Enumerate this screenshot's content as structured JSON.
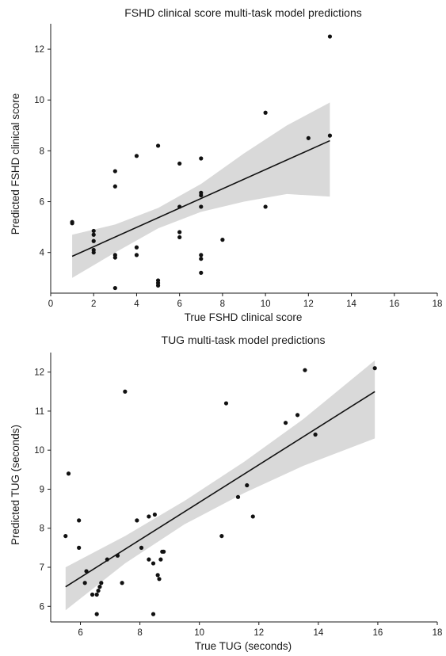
{
  "chart_data": [
    {
      "type": "scatter",
      "title": "FSHD clinical score multi-task model predictions",
      "xlabel": "True FSHD clinical score",
      "ylabel": "Predicted FSHD clinical score",
      "xlim": [
        0,
        18
      ],
      "ylim": [
        2.4,
        13
      ],
      "xticks": [
        0,
        2,
        4,
        6,
        8,
        10,
        12,
        14,
        16,
        18
      ],
      "yticks": [
        4,
        6,
        8,
        10,
        12
      ],
      "grid": false,
      "point_color": "#111111",
      "band_color": "#d9d9d9",
      "regression": {
        "start": [
          1,
          3.85
        ],
        "end": [
          13,
          8.4
        ]
      },
      "confidence_band": [
        {
          "x": 1,
          "lo": 3.0,
          "hi": 4.7
        },
        {
          "x": 3,
          "lo": 4.0,
          "hi": 5.1
        },
        {
          "x": 5,
          "lo": 4.95,
          "hi": 5.75
        },
        {
          "x": 7,
          "lo": 5.6,
          "hi": 6.7
        },
        {
          "x": 9,
          "lo": 6.0,
          "hi": 7.9
        },
        {
          "x": 11,
          "lo": 6.3,
          "hi": 9.0
        },
        {
          "x": 13,
          "lo": 6.2,
          "hi": 9.9
        }
      ],
      "points": [
        {
          "x": 1,
          "y": 5.15
        },
        {
          "x": 1,
          "y": 5.2
        },
        {
          "x": 2,
          "y": 4.85
        },
        {
          "x": 2,
          "y": 4.7
        },
        {
          "x": 2,
          "y": 4.45
        },
        {
          "x": 2,
          "y": 4.1
        },
        {
          "x": 2,
          "y": 4.0
        },
        {
          "x": 3,
          "y": 7.2
        },
        {
          "x": 3,
          "y": 6.6
        },
        {
          "x": 3,
          "y": 3.9
        },
        {
          "x": 3,
          "y": 3.8
        },
        {
          "x": 3,
          "y": 2.6
        },
        {
          "x": 4,
          "y": 7.8
        },
        {
          "x": 4,
          "y": 4.2
        },
        {
          "x": 4,
          "y": 3.9
        },
        {
          "x": 5,
          "y": 8.2
        },
        {
          "x": 5,
          "y": 2.9
        },
        {
          "x": 5,
          "y": 2.8
        },
        {
          "x": 5,
          "y": 2.7
        },
        {
          "x": 6,
          "y": 7.5
        },
        {
          "x": 6,
          "y": 5.8
        },
        {
          "x": 6,
          "y": 4.8
        },
        {
          "x": 6,
          "y": 4.6
        },
        {
          "x": 7,
          "y": 7.7
        },
        {
          "x": 7,
          "y": 6.35
        },
        {
          "x": 7,
          "y": 6.25
        },
        {
          "x": 7,
          "y": 5.8
        },
        {
          "x": 7,
          "y": 3.9
        },
        {
          "x": 7,
          "y": 3.75
        },
        {
          "x": 7,
          "y": 3.2
        },
        {
          "x": 8,
          "y": 4.5
        },
        {
          "x": 10,
          "y": 9.5
        },
        {
          "x": 10,
          "y": 5.8
        },
        {
          "x": 12,
          "y": 8.5
        },
        {
          "x": 13,
          "y": 12.5
        },
        {
          "x": 13,
          "y": 8.6
        }
      ]
    },
    {
      "type": "scatter",
      "title": "TUG multi-task model predictions",
      "xlabel": "True TUG (seconds)",
      "ylabel": "Predicted TUG (seconds)",
      "xlim": [
        5,
        18
      ],
      "ylim": [
        5.6,
        12.5
      ],
      "xticks": [
        6,
        8,
        10,
        12,
        14,
        16,
        18
      ],
      "yticks": [
        6,
        7,
        8,
        9,
        10,
        11,
        12
      ],
      "grid": false,
      "point_color": "#111111",
      "band_color": "#d9d9d9",
      "regression": {
        "start": [
          5.5,
          6.5
        ],
        "end": [
          15.9,
          11.5
        ]
      },
      "confidence_band": [
        {
          "x": 5.5,
          "lo": 5.9,
          "hi": 7.0
        },
        {
          "x": 7.5,
          "lo": 7.1,
          "hi": 7.8
        },
        {
          "x": 9.5,
          "lo": 8.1,
          "hi": 8.7
        },
        {
          "x": 11.5,
          "lo": 8.9,
          "hi": 9.7
        },
        {
          "x": 13.5,
          "lo": 9.6,
          "hi": 10.8
        },
        {
          "x": 15.9,
          "lo": 10.3,
          "hi": 12.3
        }
      ],
      "points": [
        {
          "x": 5.5,
          "y": 7.8
        },
        {
          "x": 5.6,
          "y": 9.4
        },
        {
          "x": 5.95,
          "y": 8.2
        },
        {
          "x": 5.95,
          "y": 7.5
        },
        {
          "x": 6.15,
          "y": 6.6
        },
        {
          "x": 6.2,
          "y": 6.9
        },
        {
          "x": 6.4,
          "y": 6.3
        },
        {
          "x": 6.55,
          "y": 6.3
        },
        {
          "x": 6.6,
          "y": 6.4
        },
        {
          "x": 6.65,
          "y": 6.5
        },
        {
          "x": 6.7,
          "y": 6.6
        },
        {
          "x": 6.55,
          "y": 5.8
        },
        {
          "x": 6.9,
          "y": 7.2
        },
        {
          "x": 7.25,
          "y": 7.3
        },
        {
          "x": 7.4,
          "y": 6.6
        },
        {
          "x": 7.5,
          "y": 11.5
        },
        {
          "x": 7.9,
          "y": 8.2
        },
        {
          "x": 8.05,
          "y": 7.5
        },
        {
          "x": 8.3,
          "y": 8.3
        },
        {
          "x": 8.3,
          "y": 7.2
        },
        {
          "x": 8.45,
          "y": 7.1
        },
        {
          "x": 8.5,
          "y": 8.35
        },
        {
          "x": 8.45,
          "y": 5.8
        },
        {
          "x": 8.6,
          "y": 6.8
        },
        {
          "x": 8.65,
          "y": 6.7
        },
        {
          "x": 8.7,
          "y": 7.2
        },
        {
          "x": 8.75,
          "y": 7.4
        },
        {
          "x": 8.8,
          "y": 7.4
        },
        {
          "x": 10.75,
          "y": 7.8
        },
        {
          "x": 10.9,
          "y": 11.2
        },
        {
          "x": 11.3,
          "y": 8.8
        },
        {
          "x": 11.6,
          "y": 9.1
        },
        {
          "x": 11.8,
          "y": 8.3
        },
        {
          "x": 12.9,
          "y": 10.7
        },
        {
          "x": 13.3,
          "y": 10.9
        },
        {
          "x": 13.55,
          "y": 12.05
        },
        {
          "x": 13.9,
          "y": 10.4
        },
        {
          "x": 15.9,
          "y": 12.1
        }
      ]
    }
  ]
}
